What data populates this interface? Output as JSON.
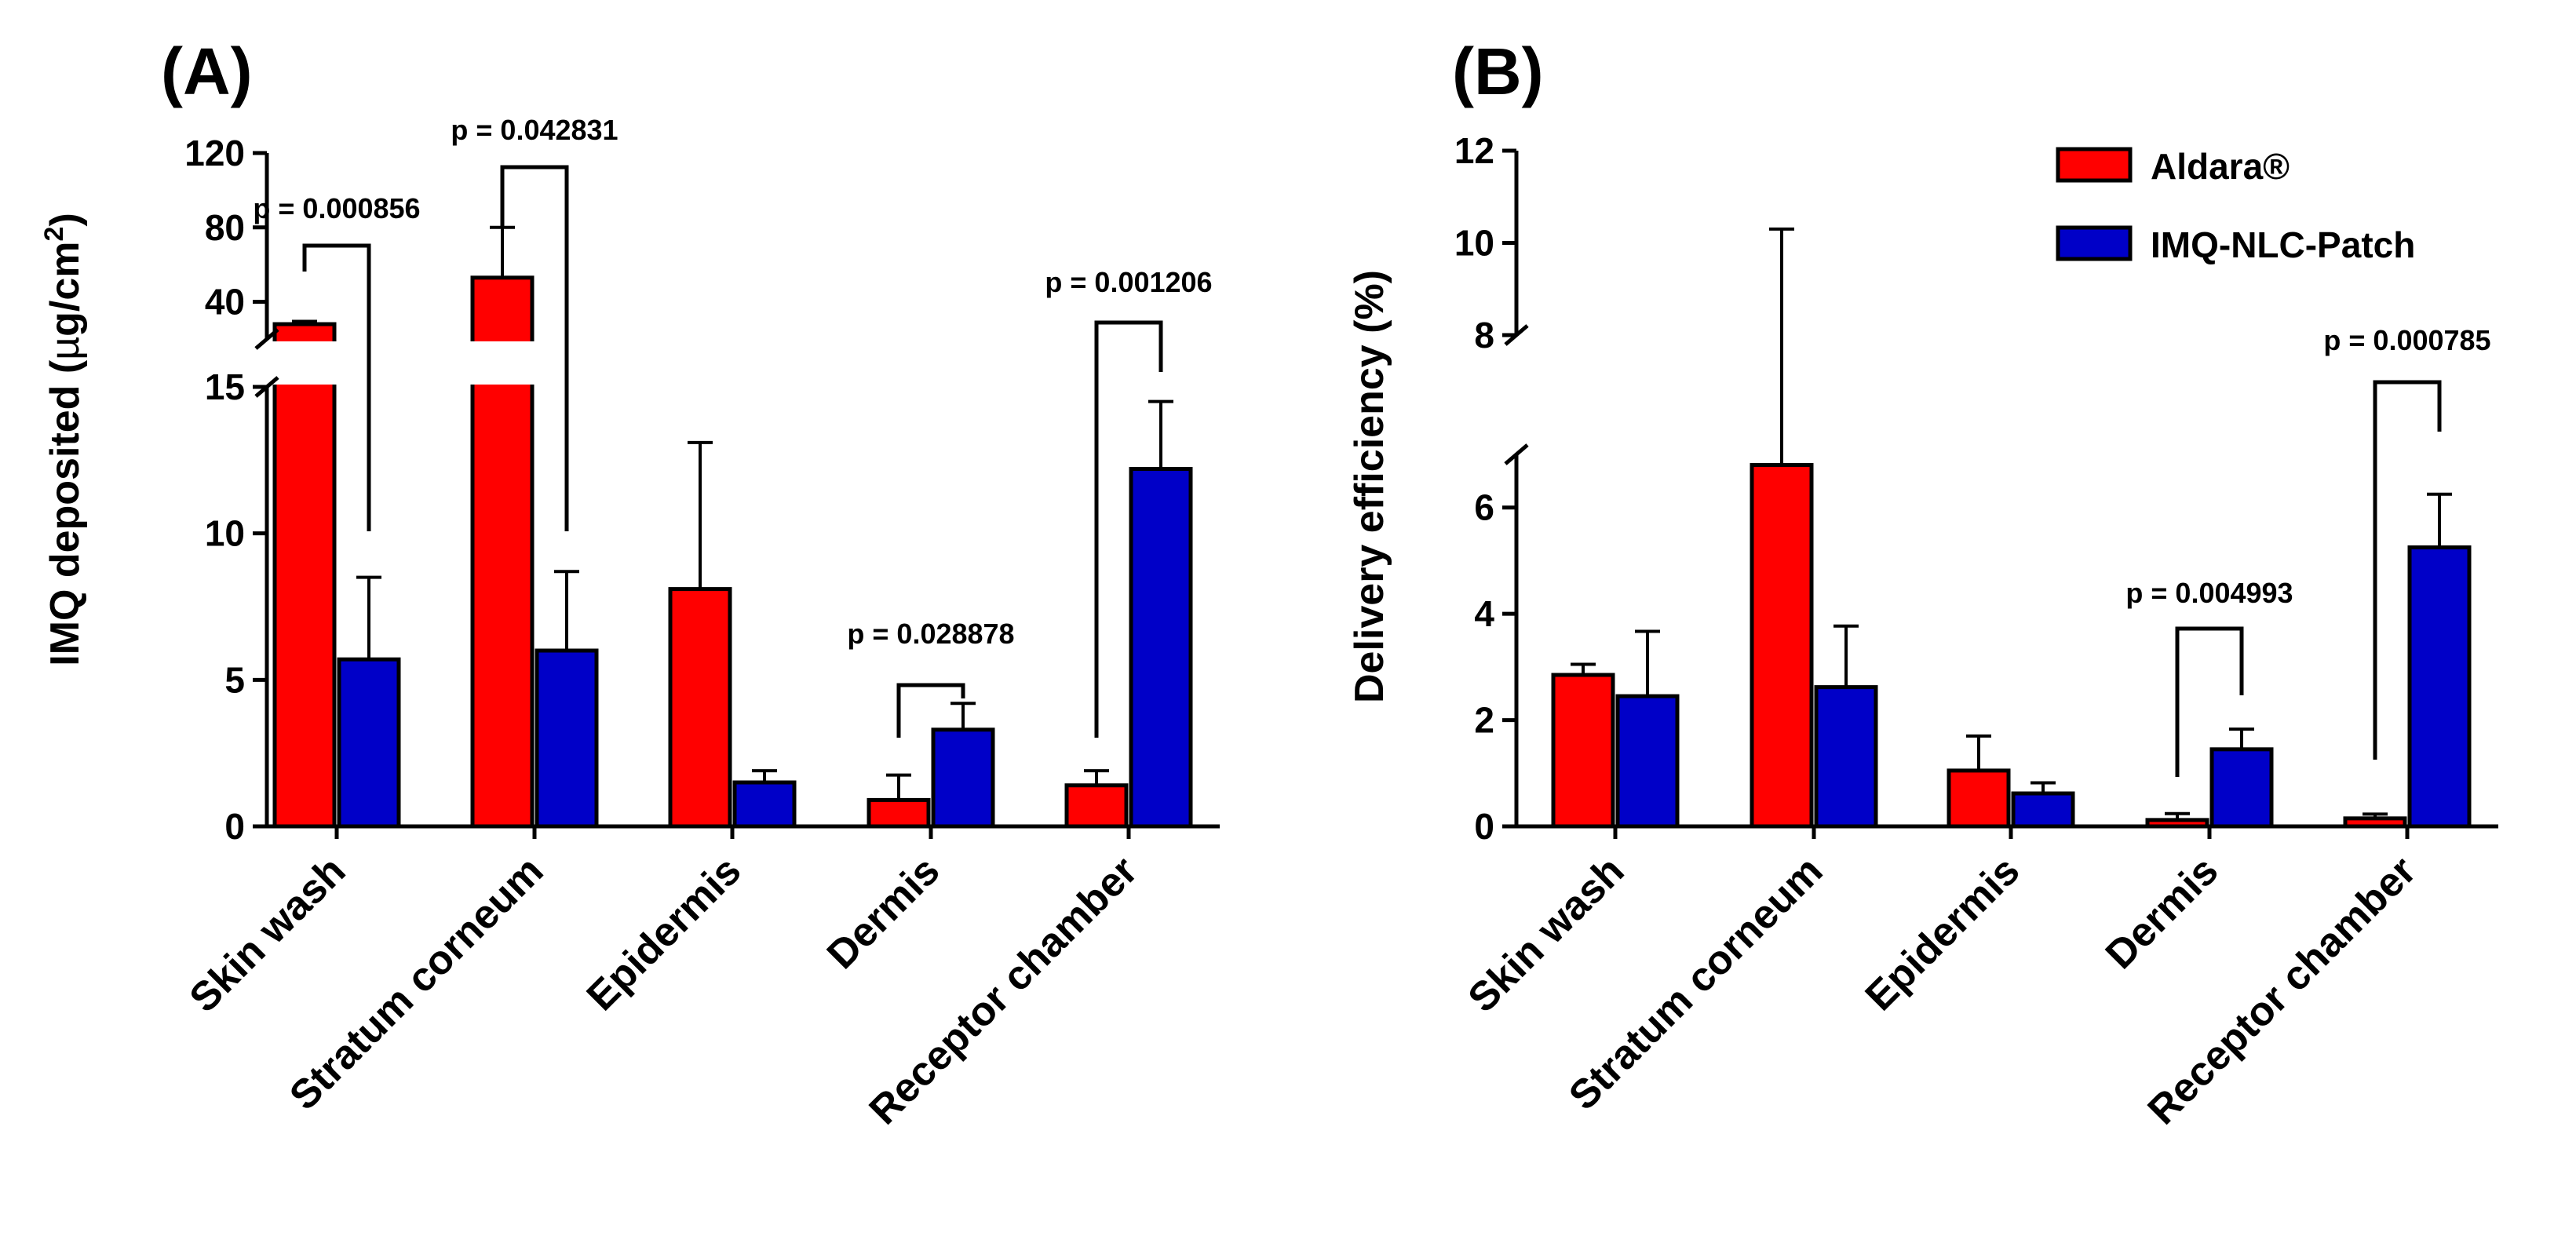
{
  "figure": {
    "legend": [
      {
        "label": "Aldara®",
        "color": "#ff0000"
      },
      {
        "label": "IMQ-NLC-Patch",
        "color": "#0000c8"
      }
    ]
  },
  "chart_data": [
    {
      "type": "bar",
      "panel": "(A)",
      "ylabel": "IMQ deposited (µg/cm²)",
      "ylabel_parts": [
        "IMQ deposited (",
        "µ",
        "g/cm",
        "2",
        ")"
      ],
      "categories": [
        "Skin wash",
        "Stratum corneum",
        "Epidermis",
        "Dermis",
        "Receptor chamber"
      ],
      "axis_break": {
        "lower": [
          0,
          15
        ],
        "upper": [
          20,
          120
        ]
      },
      "yticks_lower": [
        0,
        5,
        10,
        15
      ],
      "yticks_upper": [
        40,
        80,
        120
      ],
      "series": [
        {
          "name": "Aldara®",
          "values": [
            28,
            53,
            8.1,
            0.9,
            1.4
          ],
          "errors": [
            1.5,
            27,
            5,
            0.85,
            0.5
          ]
        },
        {
          "name": "IMQ-NLC-Patch",
          "values": [
            5.7,
            6.0,
            1.5,
            3.3,
            12.2
          ],
          "errors": [
            2.8,
            2.7,
            0.4,
            0.9,
            2.3
          ]
        }
      ],
      "pvalues": [
        {
          "text": "p = 0.000856",
          "category": "Skin wash"
        },
        {
          "text": "p = 0.042831",
          "category": "Stratum corneum"
        },
        {
          "text": "p = 0.028878",
          "category": "Dermis"
        },
        {
          "text": "p = 0.001206",
          "category": "Receptor chamber"
        }
      ]
    },
    {
      "type": "bar",
      "panel": "(B)",
      "ylabel": "Delivery efficiency (%)",
      "categories": [
        "Skin wash",
        "Stratum corneum",
        "Epidermis",
        "Dermis",
        "Receptor chamber"
      ],
      "axis_break": {
        "lower": [
          0,
          7
        ],
        "upper": [
          8,
          12
        ]
      },
      "yticks_lower": [
        0,
        2,
        4,
        6
      ],
      "yticks_upper": [
        8,
        10,
        12
      ],
      "series": [
        {
          "name": "Aldara®",
          "values": [
            2.85,
            6.8,
            1.05,
            0.12,
            0.15
          ],
          "errors": [
            0.2,
            3.5,
            0.65,
            0.12,
            0.08
          ]
        },
        {
          "name": "IMQ-NLC-Patch",
          "values": [
            2.45,
            2.62,
            0.62,
            1.45,
            5.25
          ],
          "errors": [
            1.22,
            1.15,
            0.2,
            0.38,
            1.0
          ]
        }
      ],
      "pvalues": [
        {
          "text": "p = 0.004993",
          "category": "Dermis"
        },
        {
          "text": "p = 0.000785",
          "category": "Receptor chamber"
        }
      ]
    }
  ]
}
